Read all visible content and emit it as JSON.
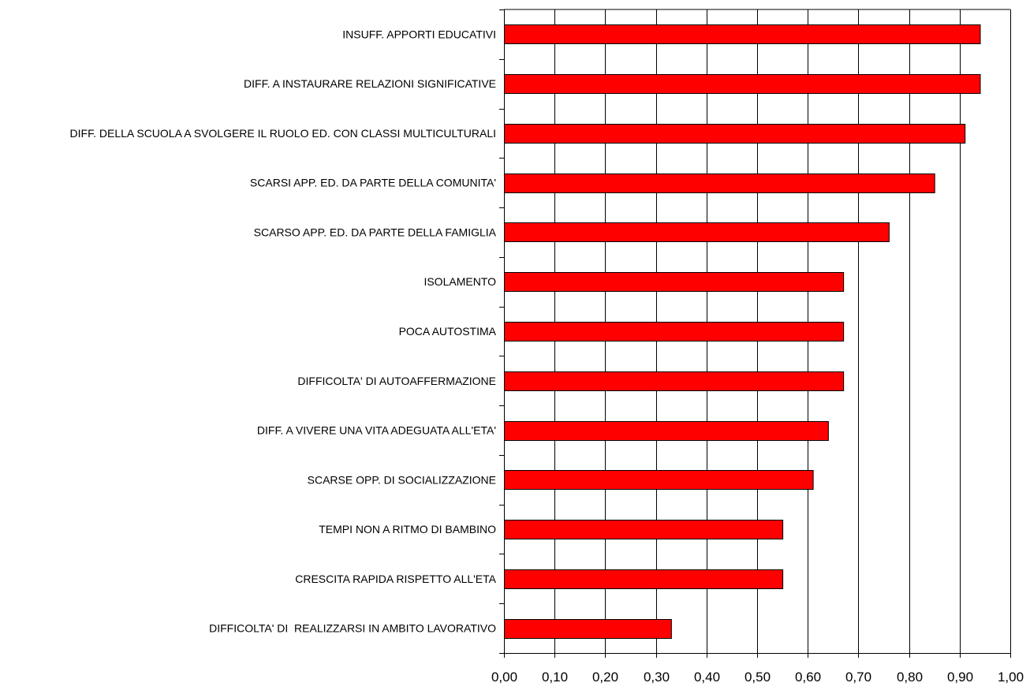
{
  "chart_data": {
    "type": "bar",
    "orientation": "horizontal",
    "categories": [
      "INSUFF. APPORTI EDUCATIVI",
      "DIFF. A INSTAURARE RELAZIONI SIGNIFICATIVE",
      "DIFF. DELLA SCUOLA A SVOLGERE IL RUOLO ED. CON CLASSI MULTICULTURALI",
      "SCARSI APP. ED. DA PARTE DELLA COMUNITA'",
      "SCARSO APP. ED. DA PARTE DELLA FAMIGLIA",
      "ISOLAMENTO",
      "POCA AUTOSTIMA",
      "DIFFICOLTA' DI AUTOAFFERMAZIONE",
      "DIFF. A VIVERE UNA VITA ADEGUATA ALL'ETA'",
      "SCARSE OPP. DI SOCIALIZZAZIONE",
      "TEMPI NON A RITMO DI BAMBINO",
      "CRESCITA RAPIDA RISPETTO ALL'ETA",
      "DIFFICOLTA' DI  REALIZZARSI IN AMBITO LAVORATIVO"
    ],
    "values": [
      0.94,
      0.94,
      0.91,
      0.85,
      0.76,
      0.67,
      0.67,
      0.67,
      0.64,
      0.61,
      0.55,
      0.55,
      0.33
    ],
    "xlim": [
      0,
      1
    ],
    "xticks": [
      "0,00",
      "0,10",
      "0,20",
      "0,30",
      "0,40",
      "0,50",
      "0,60",
      "0,70",
      "0,80",
      "0,90",
      "1,00"
    ],
    "title": "",
    "xlabel": "",
    "ylabel": "",
    "grid": "vertical",
    "legend": "none",
    "colors": {
      "bar_fill": "#ff0000",
      "bar_stroke": "#000000",
      "grid": "#000000",
      "axis": "#000000"
    }
  }
}
